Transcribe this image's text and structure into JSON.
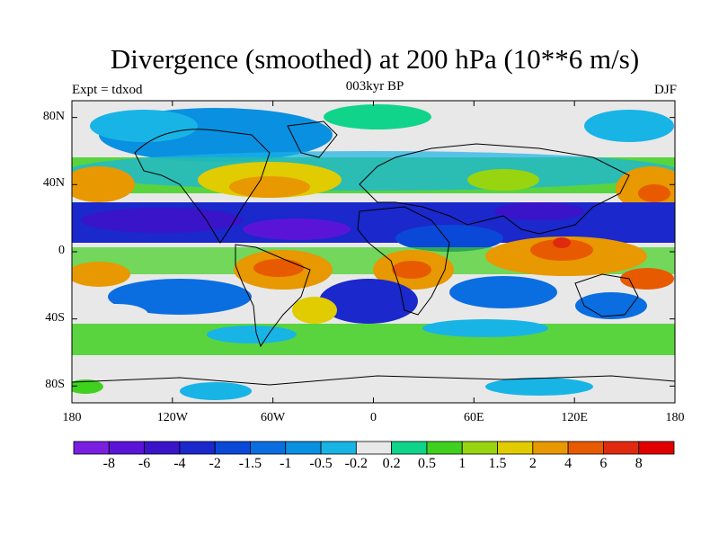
{
  "header": {
    "title": "Divergence (smoothed) at 200 hPa (10**6 m/s)",
    "left": "Expt = tdxod",
    "center": "003kyr BP",
    "right": "DJF"
  },
  "map": {
    "projection": "cylindrical-equidistant",
    "lon_range": [
      -180,
      180
    ],
    "lat_range": [
      -90,
      90
    ],
    "lat_ticks": [
      "80N",
      "40N",
      "0",
      "40S",
      "80S"
    ],
    "lon_ticks": [
      "180",
      "120W",
      "60W",
      "0",
      "60E",
      "120E",
      "180"
    ],
    "background": "#e8e8e8"
  },
  "colorbar": {
    "labels": [
      "-8",
      "-6",
      "-4",
      "-2",
      "-1.5",
      "-1",
      "-0.5",
      "-0.2",
      "0.2",
      "0.5",
      "1",
      "1.5",
      "2",
      "4",
      "6",
      "8"
    ],
    "colors": [
      "#7a1fe0",
      "#5a14d8",
      "#3a14c8",
      "#1a28cc",
      "#0a48d8",
      "#0a6ee0",
      "#0a90e0",
      "#18b4e6",
      "#e8e8e8",
      "#10d48a",
      "#40d020",
      "#98d410",
      "#e0cc00",
      "#e89800",
      "#e85a00",
      "#e02a10",
      "#e00000"
    ]
  }
}
